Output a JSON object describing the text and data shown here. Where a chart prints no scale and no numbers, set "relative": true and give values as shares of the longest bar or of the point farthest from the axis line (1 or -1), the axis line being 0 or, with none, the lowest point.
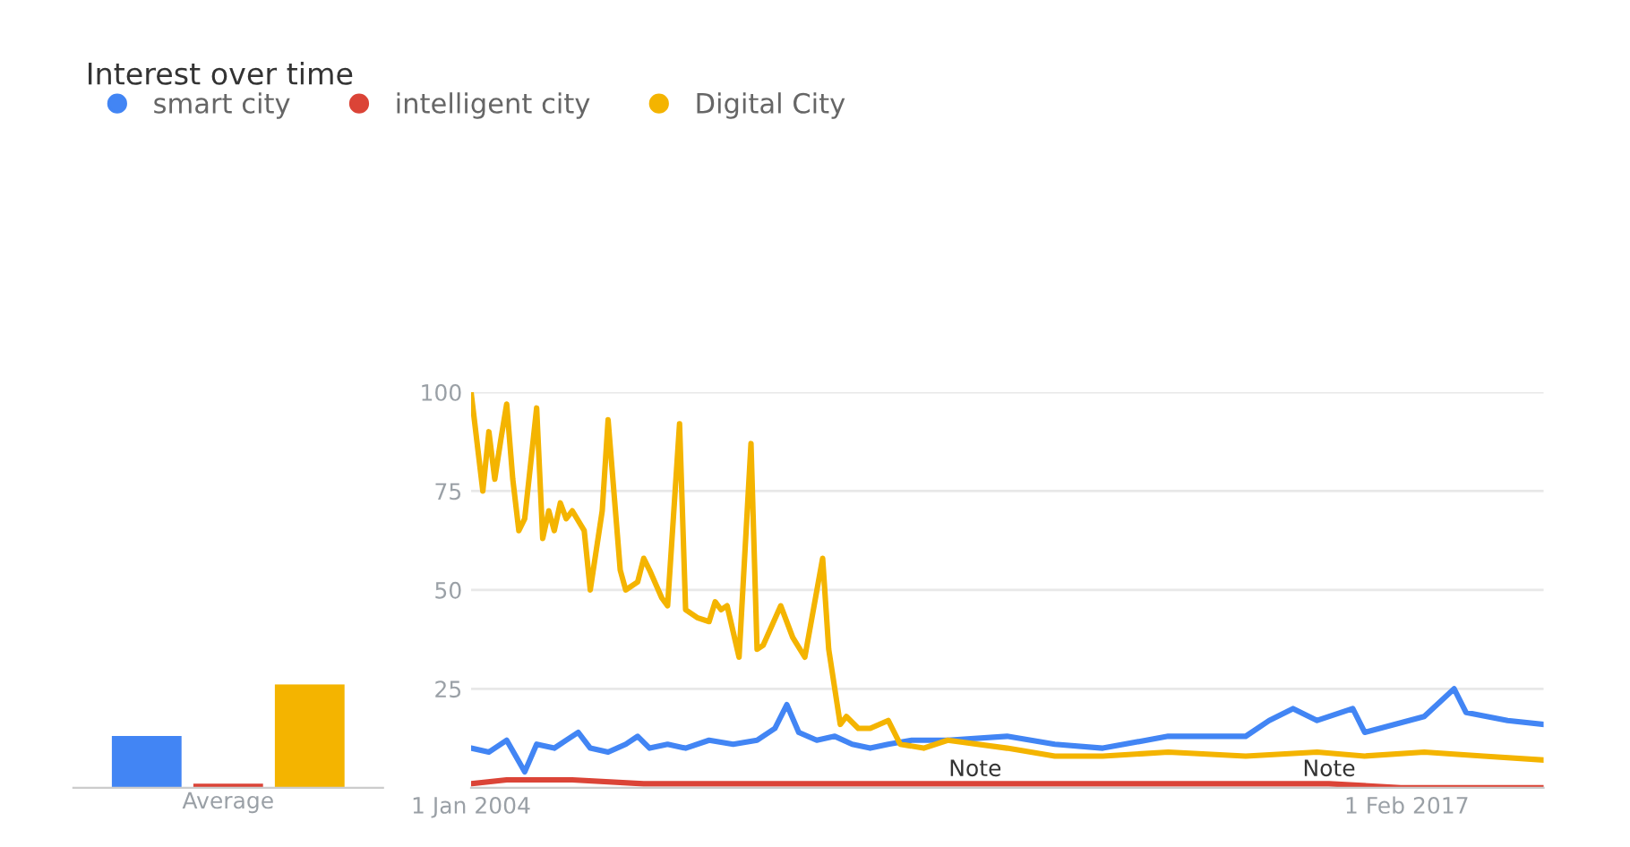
{
  "chart_data": [
    {
      "type": "bar",
      "title": "Interest over time",
      "xlabel": "Average",
      "categories": [
        null,
        null,
        null
      ],
      "relative": true,
      "values": [
        0.5,
        0.04,
        1
      ],
      "colors": [
        "#4285f4",
        "#db4437",
        "#f4b400"
      ]
    },
    {
      "type": "line",
      "legend": "top left",
      "grid": "y",
      "marker": "none",
      "line_style": "solid",
      "xlim": [
        "2004-01",
        "2019-01"
      ],
      "xticks": [
        {
          "value": "2004-01-01",
          "label": "1 Jan 2004"
        },
        {
          "value": "2017-02-01",
          "label": "1 Feb 2017"
        }
      ],
      "ylim": [
        0,
        100
      ],
      "yticks": [
        25,
        50,
        75,
        100
      ],
      "annotations": [
        "Note",
        "Note"
      ],
      "series": [
        {
          "name": "smart city",
          "color": "#4285f4",
          "x": [
            "2004-01",
            "2004-04",
            "2004-07",
            "2004-10",
            "2004-12",
            "2005-03",
            "2005-05",
            "2005-07",
            "2005-09",
            "2005-12",
            "2006-03",
            "2006-05",
            "2006-07",
            "2006-10",
            "2007-01",
            "2007-05",
            "2007-09",
            "2008-01",
            "2008-04",
            "2008-06",
            "2008-08",
            "2008-11",
            "2009-02",
            "2009-05",
            "2009-08",
            "2009-11",
            "2010-03",
            "2010-09",
            "2011-07",
            "2012-03",
            "2012-11",
            "2013-10",
            "2014-11",
            "2015-03",
            "2015-07",
            "2015-11",
            "2016-05",
            "2016-07",
            "2017-05",
            "2017-10",
            "2017-12",
            "2018-07",
            "2019-01"
          ],
          "values": [
            10,
            9,
            12,
            4,
            11,
            10,
            12,
            14,
            10,
            9,
            11,
            13,
            10,
            11,
            10,
            12,
            11,
            12,
            15,
            21,
            14,
            12,
            13,
            11,
            10,
            11,
            12,
            12,
            13,
            11,
            10,
            13,
            13,
            17,
            20,
            17,
            20,
            14,
            18,
            25,
            19,
            17,
            16
          ]
        },
        {
          "name": "intelligent city",
          "color": "#db4437",
          "x": [
            "2004-01",
            "2004-07",
            "2005-06",
            "2006-06",
            "2008-01",
            "2010-01",
            "2013-01",
            "2016-01",
            "2017-01",
            "2019-01"
          ],
          "values": [
            1,
            2,
            2,
            1,
            1,
            1,
            1,
            1,
            0,
            0
          ]
        },
        {
          "name": "Digital City",
          "color": "#f4b400",
          "x": [
            "2004-01",
            "2004-03",
            "2004-04",
            "2004-05",
            "2004-06",
            "2004-07",
            "2004-08",
            "2004-09",
            "2004-10",
            "2004-12",
            "2005-01",
            "2005-02",
            "2005-03",
            "2005-04",
            "2005-05",
            "2005-06",
            "2005-08",
            "2005-09",
            "2005-11",
            "2005-12",
            "2006-02",
            "2006-03",
            "2006-05",
            "2006-06",
            "2006-07",
            "2006-09",
            "2006-10",
            "2006-12",
            "2007-01",
            "2007-03",
            "2007-05",
            "2007-06",
            "2007-07",
            "2007-08",
            "2007-10",
            "2007-12",
            "2008-01",
            "2008-02",
            "2008-05",
            "2008-07",
            "2008-09",
            "2008-12",
            "2009-01",
            "2009-03",
            "2009-04",
            "2009-06",
            "2009-08",
            "2009-11",
            "2010-01",
            "2010-05",
            "2010-09",
            "2011-07",
            "2012-03",
            "2012-11",
            "2013-10",
            "2014-11",
            "2015-11",
            "2016-07",
            "2017-05",
            "2018-03",
            "2019-01"
          ],
          "values": [
            100,
            75,
            90,
            78,
            88,
            97,
            78,
            65,
            68,
            96,
            63,
            70,
            65,
            72,
            68,
            70,
            65,
            50,
            70,
            93,
            55,
            50,
            52,
            58,
            55,
            48,
            46,
            92,
            45,
            43,
            42,
            47,
            45,
            46,
            33,
            87,
            35,
            36,
            46,
            38,
            33,
            58,
            35,
            16,
            18,
            15,
            15,
            17,
            11,
            10,
            12,
            10,
            8,
            8,
            9,
            8,
            9,
            8,
            9,
            8,
            7
          ]
        }
      ]
    }
  ]
}
